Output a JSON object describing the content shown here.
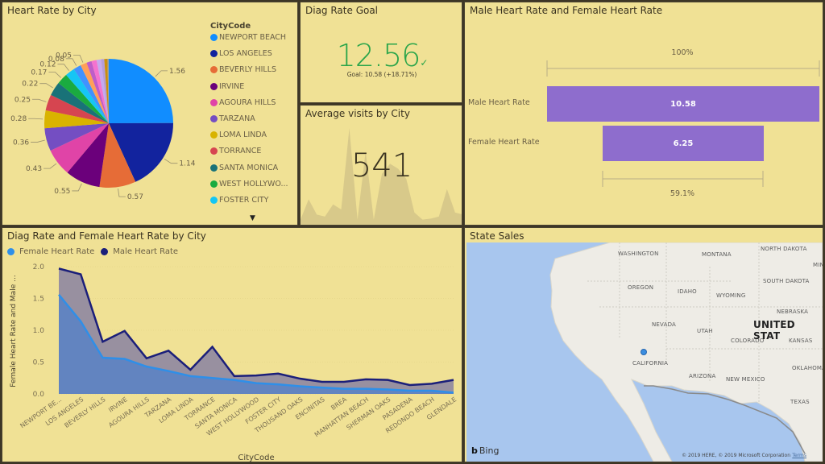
{
  "pie_tile": {
    "title": "Heart Rate by City",
    "legend_title": "CityCode",
    "legend": [
      {
        "label": "NEWPORT BEACH",
        "color": "#118dff"
      },
      {
        "label": "LOS ANGELES",
        "color": "#12239e"
      },
      {
        "label": "BEVERLY HILLS",
        "color": "#e66c37"
      },
      {
        "label": "IRVINE",
        "color": "#6b007b"
      },
      {
        "label": "AGOURA HILLS",
        "color": "#e044a7"
      },
      {
        "label": "TARZANA",
        "color": "#744ec2"
      },
      {
        "label": "LOMA LINDA",
        "color": "#d9b300"
      },
      {
        "label": "TORRANCE",
        "color": "#d64550"
      },
      {
        "label": "SANTA MONICA",
        "color": "#197278"
      },
      {
        "label": "WEST HOLLYWO...",
        "color": "#1aab40"
      },
      {
        "label": "FOSTER CITY",
        "color": "#15c6f4"
      }
    ],
    "scroll_icon": "chevron-down-icon"
  },
  "goal_tile": {
    "title": "Diag Rate Goal",
    "value": "12.56",
    "status_icon": "check-icon",
    "status_glyph": "✓",
    "goal_text": "Goal: 10.58 (+18.71%)",
    "color": "#2aa54a"
  },
  "visits_tile": {
    "title": "Average visits by City",
    "value": "541",
    "sparkline": [
      5,
      25,
      10,
      8,
      20,
      15,
      95,
      5,
      72,
      5,
      50,
      60,
      55,
      45,
      12,
      5,
      6,
      8,
      35,
      12,
      10
    ]
  },
  "funnel_tile": {
    "title": "Male Heart Rate and Female Heart Rate",
    "top_pct": "100%",
    "bottom_pct": "59.1%",
    "rows": [
      {
        "label": "Male Heart Rate",
        "value": "10.58",
        "fraction": 1.0
      },
      {
        "label": "Female Heart Rate",
        "value": "6.25",
        "fraction": 0.591
      }
    ],
    "bar_color": "#8e6dcd"
  },
  "line_tile": {
    "title": "Diag Rate and Female Heart Rate by City",
    "legend": [
      {
        "label": "Female Heart Rate",
        "color": "#2f8fe8"
      },
      {
        "label": "Male Heart Rate",
        "color": "#1b1f7a"
      }
    ]
  },
  "map_tile": {
    "title": "State Sales",
    "labels": [
      {
        "text": "WASHINGTON"
      },
      {
        "text": "MONTANA"
      },
      {
        "text": "NORTH DAKOTA"
      },
      {
        "text": "OREGON"
      },
      {
        "text": "IDAHO"
      },
      {
        "text": "WYOMING"
      },
      {
        "text": "SOUTH DAKOTA"
      },
      {
        "text": "NEBRASKA"
      },
      {
        "text": "NEVADA"
      },
      {
        "text": "UTAH"
      },
      {
        "text": "COLORADO"
      },
      {
        "text": "KANSAS"
      },
      {
        "text": "CALIFORNIA"
      },
      {
        "text": "ARIZONA"
      },
      {
        "text": "NEW MEXICO"
      },
      {
        "text": "OKLAHOMA"
      },
      {
        "text": "TEXAS"
      },
      {
        "text": "MINI"
      }
    ],
    "country_label": "UNITED STAT",
    "provider": "Bing",
    "copyright": "© 2019 HERE, © 2019 Microsoft Corporation",
    "terms": "Terms"
  },
  "chart_data": [
    {
      "type": "pie",
      "title": "Heart Rate by City",
      "legend_title": "CityCode",
      "legend_position": "right",
      "slices": [
        {
          "label": "NEWPORT BEACH",
          "value": 1.56,
          "color": "#118dff"
        },
        {
          "label": "LOS ANGELES",
          "value": 1.14,
          "color": "#12239e"
        },
        {
          "label": "BEVERLY HILLS",
          "value": 0.57,
          "color": "#e66c37"
        },
        {
          "label": "IRVINE",
          "value": 0.55,
          "color": "#6b007b"
        },
        {
          "label": "AGOURA HILLS",
          "value": 0.43,
          "color": "#e044a7"
        },
        {
          "label": "TARZANA",
          "value": 0.36,
          "color": "#744ec2"
        },
        {
          "label": "LOMA LINDA",
          "value": 0.28,
          "color": "#d9b300"
        },
        {
          "label": "TORRANCE",
          "value": 0.25,
          "color": "#d64550"
        },
        {
          "label": "SANTA MONICA",
          "value": 0.22,
          "color": "#197278"
        },
        {
          "label": "WEST HOLLYWOOD",
          "value": 0.17,
          "color": "#1aab40"
        },
        {
          "label": "FOSTER CITY",
          "value": 0.15,
          "color": "#15c6f4"
        },
        {
          "label": "THOUSAND OAKS",
          "value": 0.12,
          "color": "#4092ff"
        },
        {
          "label": "ENCINITAS",
          "value": 0.1,
          "color": "#ffa058"
        },
        {
          "label": "BREA",
          "value": 0.08,
          "color": "#be5dc9"
        },
        {
          "label": "MANHATTAN BEACH",
          "value": 0.08,
          "color": "#f472d0"
        },
        {
          "label": "SHERMAN OAKS",
          "value": 0.07,
          "color": "#c5a8f0"
        },
        {
          "label": "PASADENA",
          "value": 0.05,
          "color": "#b39ddb"
        },
        {
          "label": "REDONDO BEACH",
          "value": 0.05,
          "color": "#c98e0f"
        },
        {
          "label": "GLENDALE",
          "value": 0.02,
          "color": "#a0a0a0"
        }
      ],
      "data_labels": [
        "1.56",
        "1.14",
        "0.57",
        "0.55",
        "0.43",
        "0.36",
        "0.28",
        "0.25",
        "0.22",
        "0.17",
        "0.12",
        "0.08",
        "0.05"
      ]
    },
    {
      "type": "area",
      "title": "Diag Rate and Female Heart Rate by City",
      "xlabel": "CityCode",
      "ylabel": "Female Heart Rate and Male ...",
      "ylim": [
        0,
        2.0
      ],
      "yticks": [
        "0.0",
        "0.5",
        "1.0",
        "1.5",
        "2.0"
      ],
      "grid": true,
      "legend_position": "top-left",
      "categories": [
        "NEWPORT BE...",
        "LOS ANGELES",
        "BEVERLY HILLS",
        "IRVINE",
        "AGOURA HILLS",
        "TARZANA",
        "LOMA LINDA",
        "TORRANCE",
        "SANTA MONICA",
        "WEST HOLLYWOOD",
        "FOSTER CITY",
        "THOUSAND OAKS",
        "ENCINITAS",
        "BREA",
        "MANHATTAN BEACH",
        "SHERMAN OAKS",
        "PASADENA",
        "REDONDO BEACH",
        "GLENDALE"
      ],
      "series": [
        {
          "name": "Male Heart Rate",
          "color": "#1b1f7a",
          "fill": "#9890a0",
          "values": [
            1.97,
            1.88,
            0.82,
            0.99,
            0.56,
            0.68,
            0.38,
            0.74,
            0.28,
            0.29,
            0.32,
            0.24,
            0.19,
            0.19,
            0.23,
            0.22,
            0.14,
            0.16,
            0.22
          ]
        },
        {
          "name": "Female Heart Rate",
          "color": "#2f8fe8",
          "fill": "#6284c0",
          "values": [
            1.56,
            1.14,
            0.57,
            0.55,
            0.43,
            0.36,
            0.28,
            0.25,
            0.22,
            0.17,
            0.15,
            0.12,
            0.1,
            0.08,
            0.08,
            0.07,
            0.05,
            0.05,
            0.02
          ]
        }
      ]
    },
    {
      "type": "bar",
      "title": "Male Heart Rate and Female Heart Rate",
      "categories": [
        "Male Heart Rate",
        "Female Heart Rate"
      ],
      "values": [
        10.58,
        6.25
      ],
      "annotations": [
        "100%",
        "59.1%"
      ]
    }
  ]
}
